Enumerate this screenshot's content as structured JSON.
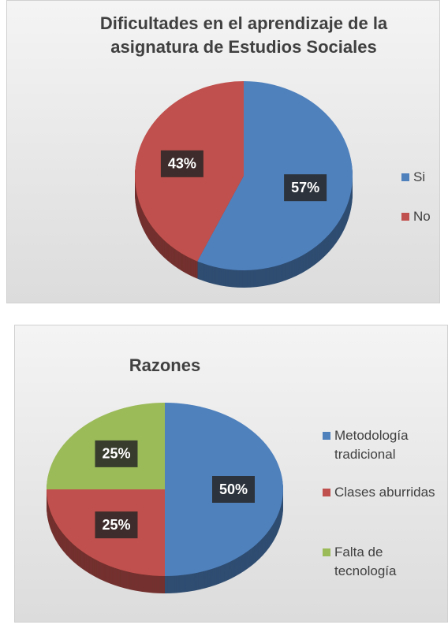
{
  "chart_data": [
    {
      "type": "pie",
      "title": "Dificultades en el aprendizaje de la asignatura de Estudios Sociales",
      "categories": [
        "Si",
        "No"
      ],
      "values": [
        57,
        43
      ],
      "value_labels": [
        "57%",
        "43%"
      ],
      "colors": [
        "#4f81bd",
        "#c0504d"
      ],
      "legend": "right"
    },
    {
      "type": "pie",
      "title": "Razones",
      "categories": [
        "Metodología tradicional",
        "Clases aburridas",
        "Falta de tecnología"
      ],
      "values": [
        50,
        25,
        25
      ],
      "value_labels": [
        "50%",
        "25%",
        "25%"
      ],
      "colors": [
        "#4f81bd",
        "#c0504d",
        "#9bbb59"
      ],
      "legend": "right"
    }
  ]
}
